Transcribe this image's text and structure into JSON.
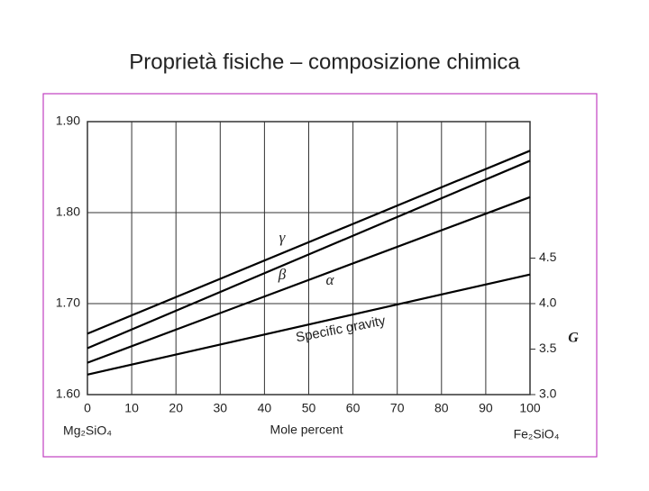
{
  "page_title": "Proprietà fisiche – composizione chimica",
  "chart_data": {
    "type": "line",
    "x_label": "Mole percent",
    "x_start_label": "Mg₂SiO₄",
    "x_end_label": "Fe₂SiO₄",
    "y2_label": "G",
    "x": [
      0,
      100
    ],
    "xlim": [
      0,
      100
    ],
    "xticks": [
      0,
      10,
      20,
      30,
      40,
      50,
      60,
      70,
      80,
      90,
      100
    ],
    "ylim": [
      1.6,
      1.9
    ],
    "yticks": [
      {
        "value": 1.6,
        "label": "1.60"
      },
      {
        "value": 1.7,
        "label": "1.70"
      },
      {
        "value": 1.8,
        "label": "1.80"
      },
      {
        "value": 1.9,
        "label": "1.90"
      }
    ],
    "y2lim": [
      3.0,
      6.0
    ],
    "y2ticks": [
      {
        "value": 3.0,
        "label": "3.0"
      },
      3.5,
      {
        "value": 4.0,
        "label": "4.0"
      },
      4.5
    ],
    "grid": true,
    "series": [
      {
        "name": "γ",
        "color": "#000000",
        "values": [
          1.667,
          1.868
        ]
      },
      {
        "name": "β",
        "color": "#000000",
        "values": [
          1.651,
          1.857
        ]
      },
      {
        "name": "α",
        "color": "#000000",
        "values": [
          1.635,
          1.817
        ]
      },
      {
        "name": "Specific gravity",
        "color": "#000000",
        "axis": "y2",
        "values": [
          3.22,
          4.32
        ]
      }
    ]
  }
}
